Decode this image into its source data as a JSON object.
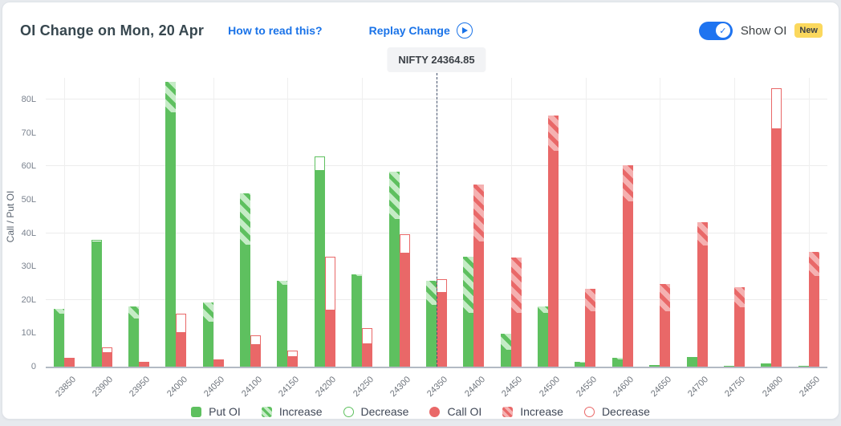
{
  "header": {
    "title": "OI Change on Mon, 20 Apr",
    "how_to_read_link": "How to read this?",
    "replay_link": "Replay Change",
    "show_oi_label": "Show OI",
    "new_badge": "New",
    "toggle_state": "on",
    "toggle_check": "✓"
  },
  "nifty_marker": {
    "label": "NIFTY 24364.85",
    "value": 24364.85
  },
  "chart_data": {
    "type": "bar",
    "title": "OI Change on Mon, 20 Apr",
    "ylabel": "Call / Put OI",
    "unit": "L (lakh)",
    "ylim": [
      0,
      86
    ],
    "y_ticks": [
      "0",
      "10L",
      "20L",
      "30L",
      "40L",
      "50L",
      "60L",
      "70L",
      "80L"
    ],
    "gridlines_at": [
      20,
      40,
      60,
      80
    ],
    "legend_position": "bottom",
    "categories": [
      "23850",
      "23900",
      "23950",
      "24000",
      "24050",
      "24100",
      "24150",
      "24200",
      "24250",
      "24300",
      "24350",
      "24400",
      "24450",
      "24500",
      "24550",
      "24600",
      "24650",
      "24700",
      "24750",
      "24800",
      "24850"
    ],
    "nifty_line": {
      "label": "NIFTY 24364.85",
      "value": 24364.85,
      "group_index": 10
    },
    "series": [
      {
        "name": "Put OI (solid)",
        "key": "put_solid",
        "values": [
          15.8,
          37.2,
          14.5,
          76.1,
          13.5,
          36.6,
          24.6,
          58.6,
          27.2,
          44.2,
          18.6,
          16.2,
          5.0,
          16.0,
          1.2,
          2.2,
          0.4,
          2.9,
          0.3,
          0.9,
          0.3
        ]
      },
      {
        "name": "Put Increase",
        "key": "put_increase",
        "values": [
          1.5,
          0,
          3.6,
          9.2,
          5.8,
          15.3,
          1.0,
          0,
          0.4,
          14.2,
          7.1,
          16.7,
          4.9,
          2.1,
          0.3,
          0.4,
          0,
          0,
          0,
          0,
          0
        ]
      },
      {
        "name": "Put Decrease",
        "key": "put_decrease",
        "values": [
          0,
          0.8,
          0,
          0,
          0,
          0,
          0,
          4.4,
          0,
          0,
          0,
          0,
          0,
          0,
          0,
          0,
          0,
          0,
          0,
          0,
          0
        ]
      },
      {
        "name": "Call OI (solid)",
        "key": "call_solid",
        "values": [
          2.6,
          4.2,
          1.4,
          10.2,
          1.6,
          6.4,
          3.0,
          16.8,
          6.8,
          33.8,
          22.2,
          37.4,
          16.2,
          64.6,
          16.6,
          49.4,
          16.6,
          36.3,
          17.7,
          71.0,
          27.2
        ]
      },
      {
        "name": "Call Increase",
        "key": "call_increase",
        "values": [
          0,
          0,
          0,
          0,
          0,
          0,
          0,
          0,
          0,
          0,
          0,
          17.2,
          16.4,
          10.5,
          6.6,
          10.9,
          8.1,
          7.0,
          6.0,
          0,
          7.1
        ]
      },
      {
        "name": "Call Decrease",
        "key": "call_decrease",
        "values": [
          0,
          1.5,
          0,
          5.7,
          0.6,
          3.0,
          1.8,
          16.0,
          4.7,
          5.9,
          3.9,
          0,
          0,
          0,
          0,
          0,
          0,
          0,
          0,
          12.4,
          0
        ]
      }
    ],
    "legend": [
      {
        "label": "Put OI"
      },
      {
        "label": "Increase"
      },
      {
        "label": "Decrease"
      },
      {
        "label": "Call OI"
      },
      {
        "label": "Increase"
      },
      {
        "label": "Decrease"
      }
    ]
  },
  "colors": {
    "put_green": "#5ec05f",
    "put_green_light": "#c5ecc6",
    "call_red": "#e96868",
    "call_red_light": "#f5b1b1",
    "link_blue": "#1a73e8",
    "toggle_blue": "#1f74f0",
    "badge_yellow": "#fbd85d",
    "nifty_line": "#46536d"
  }
}
